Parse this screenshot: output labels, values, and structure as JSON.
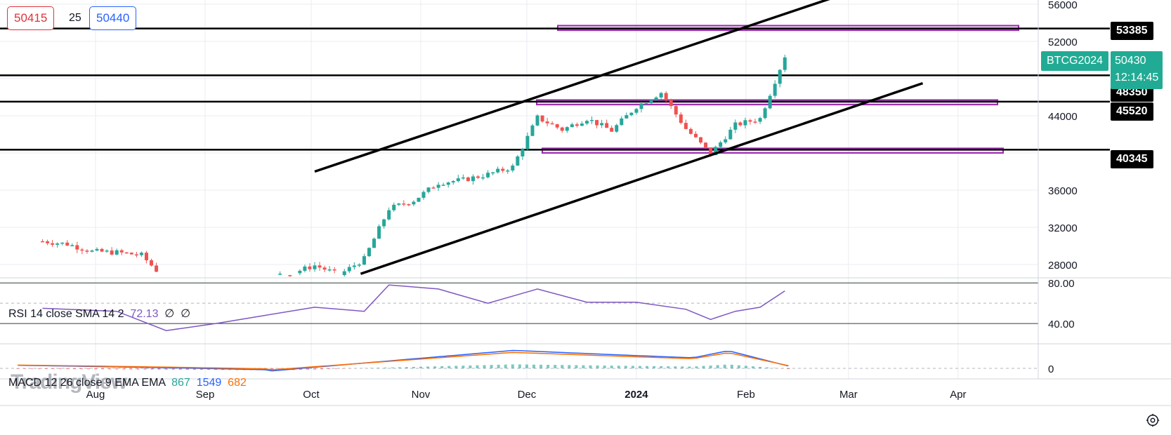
{
  "header": {
    "bid": "50415",
    "spread": "25",
    "ask": "50440"
  },
  "symbol": {
    "name": "BTCG2024",
    "last_price": "50430",
    "countdown": "12:14:45"
  },
  "levels": {
    "l1": "53385",
    "l2": "48350",
    "l3": "45520",
    "l4": "40345"
  },
  "indicators": {
    "rsi_label": "RSI 14 close SMA 14 2",
    "rsi_value": "72.13",
    "rsi_extra1": "∅",
    "rsi_extra2": "∅",
    "macd_label": "MACD 12 26 close 9 EMA EMA",
    "macd_value": "867",
    "macd_signal": "1549",
    "macd_hist": "682"
  },
  "watermark": "TradingView",
  "colors": {
    "up": "#26a69a",
    "down": "#ef5350",
    "zone": "#9c27b0",
    "rsi": "#7e57c2",
    "macd": "#2962ff",
    "signal": "#ff6d00"
  },
  "chart_data": {
    "type": "candlestick",
    "symbol": "BTCG2024",
    "y_ticks": [
      "56000",
      "52000",
      "44000",
      "36000",
      "32000",
      "28000"
    ],
    "x_ticks": [
      "Aug",
      "Sep",
      "Oct",
      "Nov",
      "Dec",
      "2024",
      "Feb",
      "Mar",
      "Apr"
    ],
    "ylim": [
      27000,
      56000
    ],
    "horizontal_levels": [
      53385,
      48350,
      45520,
      40345
    ],
    "zones": [
      [
        53200,
        53700
      ],
      [
        45200,
        45700
      ],
      [
        40000,
        40500
      ]
    ],
    "channel_upper": [
      [
        "2023-10-02",
        38000
      ],
      [
        "2024-02-28",
        57000
      ]
    ],
    "channel_lower": [
      [
        "2023-10-15",
        27000
      ],
      [
        "2024-03-22",
        47500
      ]
    ],
    "close_series": [
      [
        "2023-07-17",
        30500
      ],
      [
        "2023-07-24",
        30200
      ],
      [
        "2023-07-31",
        29400
      ],
      [
        "2023-08-07",
        29300
      ],
      [
        "2023-08-14",
        29000
      ],
      [
        "2023-08-21",
        26300
      ],
      [
        "2023-08-28",
        26800
      ],
      [
        "2023-09-04",
        25900
      ],
      [
        "2023-09-11",
        26500
      ],
      [
        "2023-09-18",
        26700
      ],
      [
        "2023-09-25",
        27000
      ],
      [
        "2023-10-02",
        27900
      ],
      [
        "2023-10-09",
        26900
      ],
      [
        "2023-10-16",
        28600
      ],
      [
        "2023-10-23",
        34000
      ],
      [
        "2023-10-30",
        34900
      ],
      [
        "2023-11-06",
        36800
      ],
      [
        "2023-11-13",
        37100
      ],
      [
        "2023-11-20",
        37700
      ],
      [
        "2023-11-27",
        38500
      ],
      [
        "2023-12-04",
        43800
      ],
      [
        "2023-12-11",
        42500
      ],
      [
        "2023-12-18",
        43700
      ],
      [
        "2023-12-25",
        42400
      ],
      [
        "2024-01-01",
        45000
      ],
      [
        "2024-01-08",
        46500
      ],
      [
        "2024-01-15",
        42600
      ],
      [
        "2024-01-22",
        39900
      ],
      [
        "2024-01-29",
        43000
      ],
      [
        "2024-02-05",
        43700
      ],
      [
        "2024-02-12",
        50430
      ]
    ],
    "rsi": {
      "value": 72.13,
      "ticks": [
        "80.00",
        "40.00"
      ],
      "ylim": [
        20,
        85
      ],
      "series": [
        [
          "2023-07-17",
          55
        ],
        [
          "2023-08-07",
          52
        ],
        [
          "2023-08-21",
          33
        ],
        [
          "2023-09-04",
          40
        ],
        [
          "2023-09-18",
          48
        ],
        [
          "2023-10-02",
          56
        ],
        [
          "2023-10-16",
          52
        ],
        [
          "2023-10-23",
          78
        ],
        [
          "2023-11-06",
          74
        ],
        [
          "2023-11-20",
          60
        ],
        [
          "2023-12-04",
          74
        ],
        [
          "2023-12-18",
          61
        ],
        [
          "2024-01-01",
          61
        ],
        [
          "2024-01-15",
          54
        ],
        [
          "2024-01-22",
          44
        ],
        [
          "2024-01-29",
          52
        ],
        [
          "2024-02-05",
          56
        ],
        [
          "2024-02-12",
          72.13
        ]
      ]
    },
    "macd": {
      "macd": 867,
      "signal": 1549,
      "histogram": 682,
      "ticks": [
        "0"
      ]
    }
  }
}
